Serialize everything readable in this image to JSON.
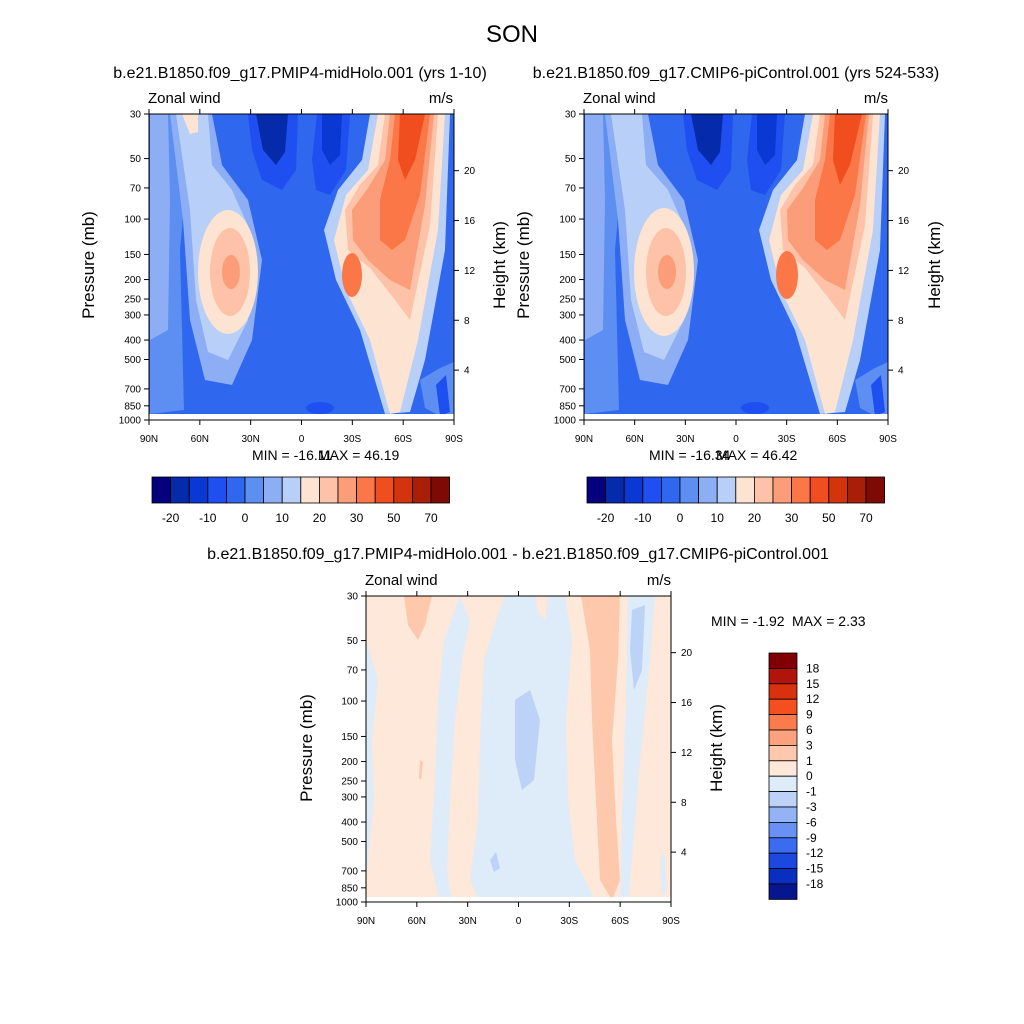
{
  "page_title": "SON",
  "chart_data": [
    {
      "type": "heatmap",
      "title": "b.e21.B1850.f09_g17.PMIP4-midHolo.001 (yrs 1-10)",
      "left_label": "Zonal wind",
      "right_label": "m/s",
      "ylabel": "Pressure (mb)",
      "y2label": "Height (km)",
      "x_ticks": [
        "90N",
        "60N",
        "30N",
        "0",
        "30S",
        "60S",
        "90S"
      ],
      "y_ticks": [
        30,
        50,
        70,
        100,
        150,
        200,
        250,
        300,
        400,
        500,
        700,
        850,
        1000
      ],
      "y2_ticks": [
        20,
        16,
        12,
        8,
        4
      ],
      "min_label": "MIN = -16.11",
      "max_label": "MAX =  46.19",
      "levels": [
        -25,
        -20,
        -15,
        -10,
        -5,
        0,
        5,
        10,
        15,
        20,
        25,
        30,
        40,
        50,
        60,
        70
      ],
      "colorbar_labels": [
        "-20",
        "-10",
        "0",
        "10",
        "20",
        "30",
        "50",
        "70"
      ],
      "stats": {
        "min": -16.11,
        "max": 46.19
      }
    },
    {
      "type": "heatmap",
      "title": "b.e21.B1850.f09_g17.CMIP6-piControl.001 (yrs 524-533)",
      "left_label": "Zonal wind",
      "right_label": "m/s",
      "ylabel": "Pressure (mb)",
      "y2label": "Height (km)",
      "x_ticks": [
        "90N",
        "60N",
        "30N",
        "0",
        "30S",
        "60S",
        "90S"
      ],
      "y_ticks": [
        30,
        50,
        70,
        100,
        150,
        200,
        250,
        300,
        400,
        500,
        700,
        850,
        1000
      ],
      "y2_ticks": [
        20,
        16,
        12,
        8,
        4
      ],
      "min_label": "MIN = -16.34",
      "max_label": "MAX =  46.42",
      "levels": [
        -25,
        -20,
        -15,
        -10,
        -5,
        0,
        5,
        10,
        15,
        20,
        25,
        30,
        40,
        50,
        60,
        70
      ],
      "colorbar_labels": [
        "-20",
        "-10",
        "0",
        "10",
        "20",
        "30",
        "50",
        "70"
      ],
      "stats": {
        "min": -16.34,
        "max": 46.42
      }
    },
    {
      "type": "heatmap",
      "title": "b.e21.B1850.f09_g17.PMIP4-midHolo.001 - b.e21.B1850.f09_g17.CMIP6-piControl.001",
      "left_label": "Zonal wind",
      "right_label": "m/s",
      "ylabel": "Pressure (mb)",
      "y2label": "Height (km)",
      "x_ticks": [
        "90N",
        "60N",
        "30N",
        "0",
        "30S",
        "60S",
        "90S"
      ],
      "y_ticks": [
        30,
        50,
        70,
        100,
        150,
        200,
        250,
        300,
        400,
        500,
        700,
        850,
        1000
      ],
      "y2_ticks": [
        20,
        16,
        12,
        8,
        4
      ],
      "min_label": "MIN = -1.92",
      "max_label": "MAX =   2.33",
      "levels": [
        18,
        15,
        12,
        9,
        6,
        3,
        1,
        0,
        -1,
        -3,
        -6,
        -9,
        -12,
        -15,
        -18
      ],
      "colorbar_labels": [
        "18",
        "15",
        "12",
        "9",
        "6",
        "3",
        "1",
        "0",
        "-1",
        "-3",
        "-6",
        "-9",
        "-12",
        "-15",
        "-18"
      ],
      "stats": {
        "min": -1.92,
        "max": 2.33
      }
    }
  ],
  "colors": {
    "field_palette": [
      "#04007e",
      "#062baa",
      "#0a38d3",
      "#1f4ff0",
      "#2f67ee",
      "#5d8ef2",
      "#8daef4",
      "#b8cff7",
      "#fde3d2",
      "#fdc2a7",
      "#fc9d79",
      "#fb7748",
      "#f04e1f",
      "#d2350e",
      "#a81e07",
      "#7e0a06"
    ],
    "diff_palette": [
      "#800003",
      "#b0140a",
      "#d9300e",
      "#f4501f",
      "#fb7b4c",
      "#fca17e",
      "#fdc8ab",
      "#fde8da",
      "#deebf9",
      "#bcd2f7",
      "#92b3f5",
      "#6891f3",
      "#3b6cf0",
      "#1d48df",
      "#0a2fc0",
      "#05168f"
    ]
  }
}
